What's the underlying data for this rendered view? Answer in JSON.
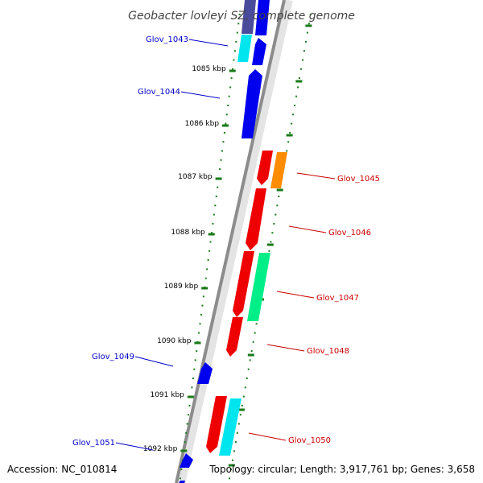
{
  "title": "Geobacter lovleyi SZ, complete genome",
  "accession": "Accession: NC_010814",
  "topology": "Topology: circular; Length: 3,917,761 bp; Genes: 3,658",
  "colors": {
    "backbone": "#8c8c8c",
    "forward_label": "#0000cc",
    "reverse_label": "#cc0000",
    "tick": "#1a7a1a",
    "blue": "#0000ee",
    "cyan": "#00e5ee",
    "red": "#ee0000",
    "orange": "#ff8c00",
    "green": "#00ee88",
    "navy": "#4b4b9b"
  },
  "ticks": [
    {
      "label": "1085 kbp"
    },
    {
      "label": "1086 kbp"
    },
    {
      "label": "1087 kbp"
    },
    {
      "label": "1088 kbp"
    },
    {
      "label": "1089 kbp"
    },
    {
      "label": "1090 kbp"
    },
    {
      "label": "1091 kbp"
    },
    {
      "label": "1092 kbp"
    }
  ],
  "labels": [
    {
      "name": "Glov_1043",
      "strand": "forward"
    },
    {
      "name": "Glov_1044",
      "strand": "forward"
    },
    {
      "name": "Glov_1045",
      "strand": "reverse"
    },
    {
      "name": "Glov_1046",
      "strand": "reverse"
    },
    {
      "name": "Glov_1047",
      "strand": "reverse"
    },
    {
      "name": "Glov_1048",
      "strand": "reverse"
    },
    {
      "name": "Glov_1049",
      "strand": "forward"
    },
    {
      "name": "Glov_1050",
      "strand": "reverse"
    },
    {
      "name": "Glov_1051",
      "strand": "forward"
    }
  ]
}
